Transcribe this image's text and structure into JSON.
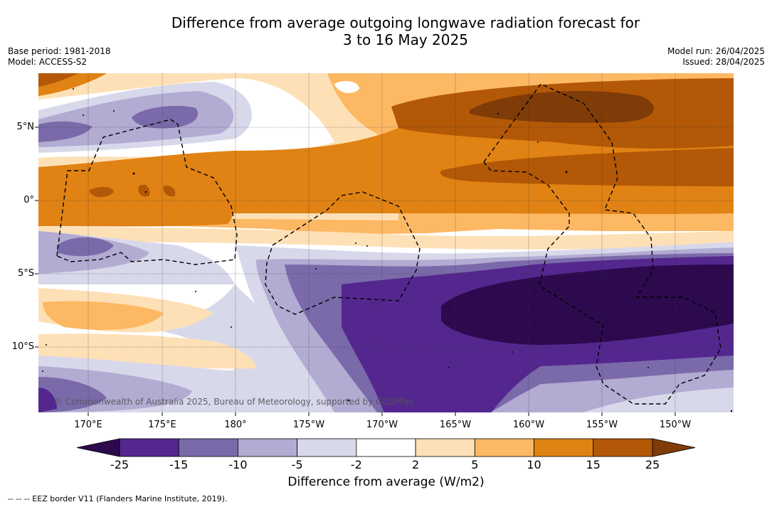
{
  "title_line1": "Difference from average outgoing longwave radiation forecast for",
  "title_line2": "3 to 16 May 2025",
  "base_period": "Base period: 1981-2018",
  "model": "Model: ACCESS-S2",
  "model_run": "Model run: 26/04/2025",
  "issued": "Issued: 28/04/2025",
  "lat_labels": [
    "5°N",
    "0°",
    "5°S",
    "10°S"
  ],
  "lon_labels": [
    "170°E",
    "175°E",
    "180°",
    "175°W",
    "170°W",
    "165°W",
    "160°W",
    "155°W",
    "150°W"
  ],
  "copyright": "© Commonwealth of Australia 2025, Bureau of Meteorology, supported by COSPPac",
  "colorbar": {
    "ticks": [
      "-25",
      "-15",
      "-10",
      "-5",
      "-2",
      "2",
      "5",
      "10",
      "15",
      "25"
    ],
    "colors": [
      "#2d0a4e",
      "#54278f",
      "#7b6aaa",
      "#b2abd2",
      "#d8d8eb",
      "#ffffff",
      "#fee0b6",
      "#fdb863",
      "#e08214",
      "#b35806",
      "#7f3b08"
    ],
    "title": "Difference from average (W/m2)"
  },
  "footnote": "--  --  -- EEZ border V11 (Flanders Marine Institute, 2019)."
}
